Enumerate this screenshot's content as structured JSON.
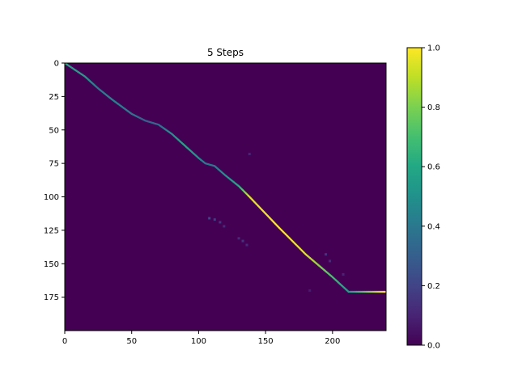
{
  "chart_data": {
    "type": "heatmap",
    "title": "5 Steps",
    "xlabel": "",
    "ylabel": "",
    "xlim": [
      0,
      240
    ],
    "ylim": [
      200,
      0
    ],
    "y_inverted": true,
    "x_ticks": [
      0,
      50,
      100,
      150,
      200
    ],
    "y_ticks": [
      0,
      25,
      50,
      75,
      100,
      125,
      150,
      175
    ],
    "colormap": "viridis",
    "background_value": 0.0,
    "colorbar": {
      "range": [
        0.0,
        1.0
      ],
      "ticks": [
        0.0,
        0.2,
        0.4,
        0.6,
        0.8,
        1.0
      ],
      "tick_labels": [
        "0.0",
        "0.2",
        "0.4",
        "0.6",
        "0.8",
        "1.0"
      ]
    },
    "alignment_path": [
      {
        "x": 0,
        "y": 0,
        "v": 0.6
      },
      {
        "x": 15,
        "y": 10,
        "v": 0.55
      },
      {
        "x": 25,
        "y": 19,
        "v": 0.4
      },
      {
        "x": 35,
        "y": 27,
        "v": 0.45
      },
      {
        "x": 50,
        "y": 38,
        "v": 0.4
      },
      {
        "x": 60,
        "y": 43,
        "v": 0.3
      },
      {
        "x": 70,
        "y": 46,
        "v": 0.35
      },
      {
        "x": 80,
        "y": 53,
        "v": 0.5
      },
      {
        "x": 90,
        "y": 62,
        "v": 0.6
      },
      {
        "x": 100,
        "y": 71,
        "v": 0.5
      },
      {
        "x": 105,
        "y": 75,
        "v": 0.4
      },
      {
        "x": 112,
        "y": 77,
        "v": 0.4
      },
      {
        "x": 120,
        "y": 84,
        "v": 0.5
      },
      {
        "x": 130,
        "y": 92,
        "v": 0.6
      },
      {
        "x": 138,
        "y": 100,
        "v": 0.95
      },
      {
        "x": 160,
        "y": 123,
        "v": 1.0
      },
      {
        "x": 180,
        "y": 143,
        "v": 0.95
      },
      {
        "x": 200,
        "y": 160,
        "v": 0.7
      },
      {
        "x": 212,
        "y": 171,
        "v": 0.55
      },
      {
        "x": 240,
        "y": 171,
        "v": 1.0
      }
    ],
    "scattered_points": [
      {
        "x": 108,
        "y": 116,
        "v": 0.2
      },
      {
        "x": 112,
        "y": 117,
        "v": 0.18
      },
      {
        "x": 116,
        "y": 119,
        "v": 0.15
      },
      {
        "x": 119,
        "y": 122,
        "v": 0.12
      },
      {
        "x": 130,
        "y": 131,
        "v": 0.12
      },
      {
        "x": 133,
        "y": 133,
        "v": 0.15
      },
      {
        "x": 136,
        "y": 136,
        "v": 0.12
      },
      {
        "x": 138,
        "y": 68,
        "v": 0.1
      },
      {
        "x": 195,
        "y": 143,
        "v": 0.15
      },
      {
        "x": 198,
        "y": 148,
        "v": 0.12
      },
      {
        "x": 208,
        "y": 158,
        "v": 0.1
      },
      {
        "x": 183,
        "y": 170,
        "v": 0.08
      }
    ]
  }
}
